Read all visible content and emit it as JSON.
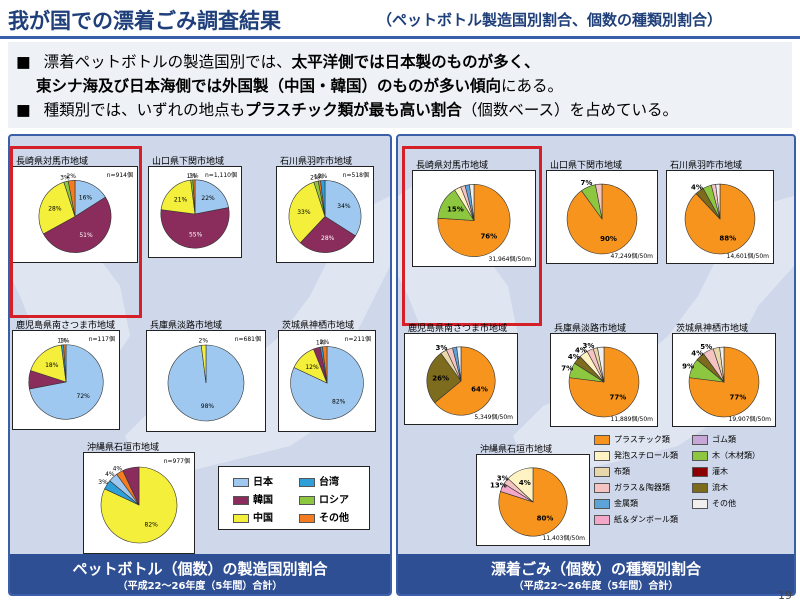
{
  "header": {
    "title": "我が国での漂着ごみ調査結果",
    "subtitle": "（ペットボトル製造国別割合、個数の種類別割合）"
  },
  "bullets": {
    "b1_pre": "漂着ペットボトルの製造国別では、",
    "b1_bold": "太平洋側では日本製のものが多く、",
    "b2_bold": "東シナ海及び日本海側では外国製（中国・韓国）のものが多い傾向",
    "b2_post": "にある。",
    "b3_pre": "種類別では、いずれの地点も",
    "b3_bold": "プラスチック類が最も高い割合",
    "b3_post": "（個数ベース）を占めている。",
    "marker": "■"
  },
  "left_panel": {
    "footer_title": "ペットボトル（個数）の製造国別割合",
    "footer_sub": "（平成22～26年度（5年間）合計）",
    "legend": [
      {
        "label": "日本",
        "color": "#9ec8ef"
      },
      {
        "label": "台湾",
        "color": "#2e9fd8"
      },
      {
        "label": "韓国",
        "color": "#8b2d5c"
      },
      {
        "label": "ロシア",
        "color": "#8dc63f"
      },
      {
        "label": "中国",
        "color": "#f3ef3a"
      },
      {
        "label": "その他",
        "color": "#f47b20"
      }
    ]
  },
  "right_panel": {
    "footer_title": "漂着ごみ（個数）の種類別割合",
    "footer_sub": "（平成22～26年度（5年間）合計）",
    "legend": [
      {
        "label": "プラスチック類",
        "color": "#f7941d"
      },
      {
        "label": "ゴム類",
        "color": "#c7a6d8"
      },
      {
        "label": "発泡スチロール類",
        "color": "#fff3c4"
      },
      {
        "label": "木（木材類）",
        "color": "#8dc63f"
      },
      {
        "label": "布類",
        "color": "#e8d7a8"
      },
      {
        "label": "灌木",
        "color": "#8b0000"
      },
      {
        "label": "ガラス＆陶器類",
        "color": "#f6c3c3"
      },
      {
        "label": "流木",
        "color": "#7d6b1e"
      },
      {
        "label": "金属類",
        "color": "#5ba3d9"
      },
      {
        "label": "その他",
        "color": "#f0f0f0"
      },
      {
        "label": "紙＆ダンボール類",
        "color": "#f4a7c9"
      }
    ]
  },
  "chart_data": [
    {
      "type": "pie",
      "title": "長崎県対馬市地域",
      "note": "n=914個",
      "slices": [
        {
          "label": "日本",
          "value": 16
        },
        {
          "label": "韓国",
          "value": 51
        },
        {
          "label": "中国",
          "value": 28
        },
        {
          "label": "ロシア",
          "value": 2
        },
        {
          "label": "その他",
          "value": 3
        }
      ],
      "labels_shown": [
        "16%",
        "51%",
        "28%",
        "3%",
        "2%"
      ]
    },
    {
      "type": "pie",
      "title": "山口県下関市地域",
      "note": "n=1,110個",
      "slices": [
        {
          "label": "日本",
          "value": 22
        },
        {
          "label": "韓国",
          "value": 55
        },
        {
          "label": "中国",
          "value": 21
        },
        {
          "label": "ロシア",
          "value": 1
        },
        {
          "label": "その他",
          "value": 1
        }
      ],
      "labels_shown": [
        "22%",
        "55%",
        "21%",
        "1%",
        "1%"
      ]
    },
    {
      "type": "pie",
      "title": "石川県羽咋市地域",
      "note": "n=518個",
      "slices": [
        {
          "label": "日本",
          "value": 34
        },
        {
          "label": "韓国",
          "value": 28
        },
        {
          "label": "中国",
          "value": 33
        },
        {
          "label": "ロシア",
          "value": 2
        },
        {
          "label": "その他",
          "value": 1
        },
        {
          "label": "台湾",
          "value": 2
        }
      ],
      "labels_shown": [
        "34%",
        "28%",
        "33%",
        "2%",
        "1%",
        "2%"
      ]
    },
    {
      "type": "pie",
      "title": "鹿児島県南さつま市地域",
      "note": "n=117個",
      "slices": [
        {
          "label": "日本",
          "value": 72
        },
        {
          "label": "韓国",
          "value": 8
        },
        {
          "label": "中国",
          "value": 18
        },
        {
          "label": "台湾",
          "value": 1
        },
        {
          "label": "その他",
          "value": 1
        }
      ],
      "labels_shown": [
        "72%",
        "8%",
        "18%",
        "1%",
        "1%"
      ]
    },
    {
      "type": "pie",
      "title": "兵庫県淡路市地域",
      "note": "n=681個",
      "slices": [
        {
          "label": "日本",
          "value": 98
        },
        {
          "label": "中国",
          "value": 2
        }
      ],
      "labels_shown": [
        "98%",
        "2%"
      ]
    },
    {
      "type": "pie",
      "title": "茨城県神栖市地域",
      "note": "n=211個",
      "slices": [
        {
          "label": "日本",
          "value": 82
        },
        {
          "label": "中国",
          "value": 12
        },
        {
          "label": "韓国",
          "value": 3
        },
        {
          "label": "台湾",
          "value": 1
        },
        {
          "label": "その他",
          "value": 2
        }
      ],
      "labels_shown": [
        "82%",
        "12%",
        "3%",
        "1%",
        "2%"
      ]
    },
    {
      "type": "pie",
      "title": "沖縄県石垣市地域",
      "note": "n=977個",
      "slices": [
        {
          "label": "中国",
          "value": 82
        },
        {
          "label": "台湾",
          "value": 4
        },
        {
          "label": "日本",
          "value": 4
        },
        {
          "label": "その他",
          "value": 3
        },
        {
          "label": "韓国",
          "value": 7
        }
      ],
      "labels_shown": [
        "82%",
        "3%",
        "4%",
        "4%"
      ]
    },
    {
      "type": "pie",
      "title": "長崎県対馬市地域",
      "note": "31,964個/50m",
      "slices": [
        {
          "label": "プラスチック類",
          "value": 76
        },
        {
          "label": "木（木材類）",
          "value": 15
        },
        {
          "label": "発泡スチロール類",
          "value": 3
        },
        {
          "label": "ガラス＆陶器類",
          "value": 2
        },
        {
          "label": "金属類",
          "value": 2
        },
        {
          "label": "その他",
          "value": 2
        }
      ],
      "labels_shown": [
        "76%",
        "15%"
      ]
    },
    {
      "type": "pie",
      "title": "山口県下関市地域",
      "note": "47,249個/50m",
      "slices": [
        {
          "label": "プラスチック類",
          "value": 90
        },
        {
          "label": "木（木材類）",
          "value": 7
        },
        {
          "label": "ガラス＆陶器類",
          "value": 3
        }
      ],
      "labels_shown": [
        "90%",
        "7%"
      ]
    },
    {
      "type": "pie",
      "title": "石川県羽咋市地域",
      "note": "14,601個/50m",
      "slices": [
        {
          "label": "プラスチック類",
          "value": 88
        },
        {
          "label": "流木",
          "value": 4
        },
        {
          "label": "木（木材類）",
          "value": 4
        },
        {
          "label": "ガラス＆陶器類",
          "value": 2
        },
        {
          "label": "その他",
          "value": 2
        }
      ],
      "labels_shown": [
        "88%",
        "4%"
      ]
    },
    {
      "type": "pie",
      "title": "鹿児島県南さつま市地域",
      "note": "5,349個/50m",
      "slices": [
        {
          "label": "プラスチック類",
          "value": 64
        },
        {
          "label": "流木",
          "value": 26
        },
        {
          "label": "布類",
          "value": 3
        },
        {
          "label": "ガラス＆陶器類",
          "value": 3
        },
        {
          "label": "金属類",
          "value": 2
        },
        {
          "label": "その他",
          "value": 2
        }
      ],
      "labels_shown": [
        "64%",
        "26%",
        "3%"
      ]
    },
    {
      "type": "pie",
      "title": "兵庫県淡路市地域",
      "note": "11,889個/50m",
      "slices": [
        {
          "label": "プラスチック類",
          "value": 77
        },
        {
          "label": "木（木材類）",
          "value": 7
        },
        {
          "label": "流木",
          "value": 4
        },
        {
          "label": "発泡スチロール類",
          "value": 4
        },
        {
          "label": "ガラス＆陶器類",
          "value": 3
        },
        {
          "label": "布類",
          "value": 2
        },
        {
          "label": "その他",
          "value": 3
        }
      ],
      "labels_shown": [
        "77%",
        "7%",
        "4%",
        "4%",
        "3%"
      ]
    },
    {
      "type": "pie",
      "title": "茨城県神栖市地域",
      "note": "19,907個/50m",
      "slices": [
        {
          "label": "プラスチック類",
          "value": 77
        },
        {
          "label": "木（木材類）",
          "value": 9
        },
        {
          "label": "流木",
          "value": 4
        },
        {
          "label": "ガラス＆陶器類",
          "value": 5
        },
        {
          "label": "布類",
          "value": 3
        },
        {
          "label": "その他",
          "value": 2
        }
      ],
      "labels_shown": [
        "77%",
        "9%",
        "4%",
        "5%"
      ]
    },
    {
      "type": "pie",
      "title": "沖縄県石垣市地域",
      "note": "11,403個/50m",
      "slices": [
        {
          "label": "プラスチック類",
          "value": 80
        },
        {
          "label": "紙＆ダンボール類",
          "value": 4
        },
        {
          "label": "ガラス＆陶器類",
          "value": 3
        },
        {
          "label": "発泡スチロール類",
          "value": 13
        }
      ],
      "labels_shown": [
        "80%",
        "13%",
        "3%",
        "4%"
      ]
    }
  ],
  "page_number": "19"
}
